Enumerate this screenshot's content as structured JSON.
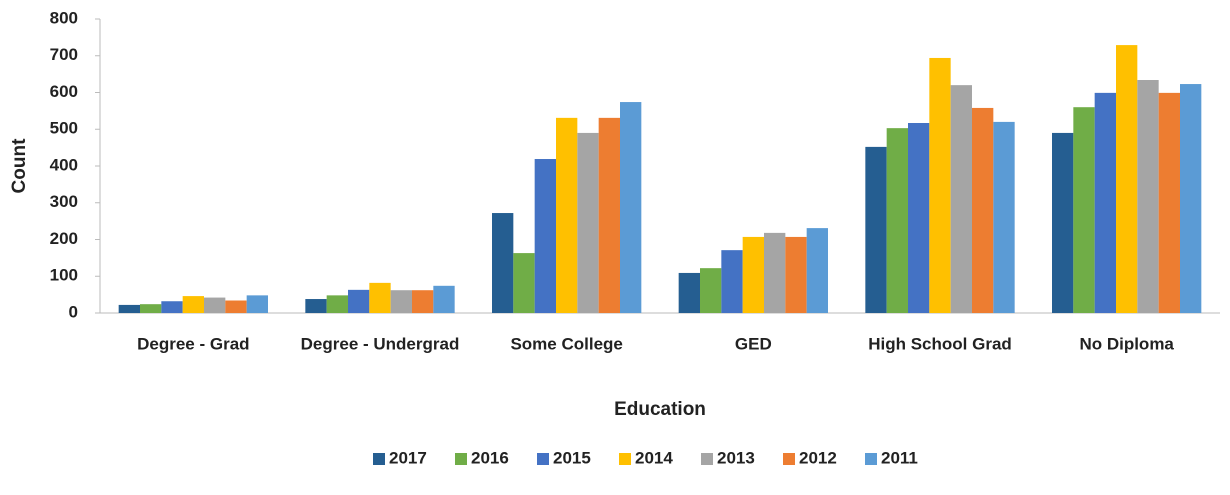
{
  "chart_data": {
    "type": "bar",
    "x_label": "Education",
    "y_label": "Count",
    "categories": [
      "Degree - Grad",
      "Degree - Undergrad",
      "Some College",
      "GED",
      "High School Grad",
      "No Diploma"
    ],
    "series": [
      {
        "name": "2017",
        "color": "#255e91",
        "values": [
          22,
          38,
          272,
          109,
          452,
          490
        ]
      },
      {
        "name": "2016",
        "color": "#70ad47",
        "values": [
          24,
          48,
          163,
          122,
          503,
          560
        ]
      },
      {
        "name": "2015",
        "color": "#4472c4",
        "values": [
          32,
          63,
          419,
          171,
          517,
          599
        ]
      },
      {
        "name": "2014",
        "color": "#ffc000",
        "values": [
          46,
          82,
          531,
          207,
          694,
          729
        ]
      },
      {
        "name": "2013",
        "color": "#a5a5a5",
        "values": [
          42,
          62,
          490,
          218,
          620,
          634
        ]
      },
      {
        "name": "2012",
        "color": "#ed7d31",
        "values": [
          34,
          62,
          531,
          207,
          558,
          599
        ]
      },
      {
        "name": "2011",
        "color": "#5b9bd5",
        "values": [
          48,
          74,
          574,
          231,
          520,
          623
        ]
      }
    ],
    "ylim": [
      0,
      800
    ],
    "yticks": [
      0,
      100,
      200,
      300,
      400,
      500,
      600,
      700,
      800
    ],
    "grid": false,
    "legend": "bottom"
  }
}
